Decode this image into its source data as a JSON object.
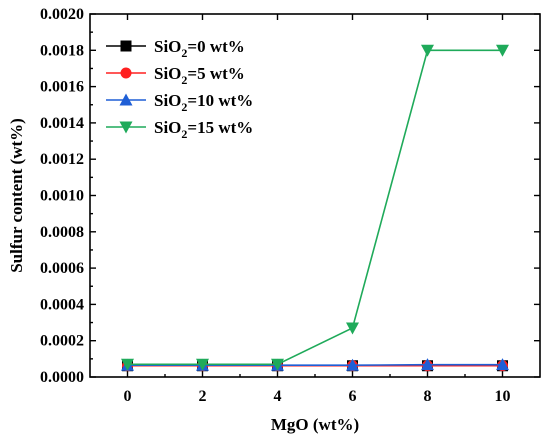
{
  "chart_data": {
    "type": "line",
    "xlabel": "MgO (wt%)",
    "ylabel": "Sulfur content (wt%)",
    "x": [
      0,
      2,
      4,
      6,
      8,
      10
    ],
    "xlim": [
      -1,
      11
    ],
    "ylim": [
      0,
      0.002
    ],
    "xticks": [
      "0",
      "2",
      "4",
      "6",
      "8",
      "10"
    ],
    "yticks": [
      "0.0000",
      "0.0002",
      "0.0004",
      "0.0006",
      "0.0008",
      "0.0010",
      "0.0012",
      "0.0014",
      "0.0016",
      "0.0018",
      "0.0020"
    ],
    "legend_position": "top-left",
    "grid": false,
    "series": [
      {
        "name_main": "SiO",
        "name_sub": "2",
        "name_rest": "=0 wt%",
        "marker": "square",
        "color": "#000000",
        "values": [
          6.2e-05,
          6.2e-05,
          6.2e-05,
          6.2e-05,
          6.2e-05,
          6.2e-05
        ]
      },
      {
        "name_main": "SiO",
        "name_sub": "2",
        "name_rest": "=5 wt%",
        "marker": "circle",
        "color": "#ff2020",
        "values": [
          6.2e-05,
          6.2e-05,
          6.2e-05,
          6.2e-05,
          6.2e-05,
          6.2e-05
        ]
      },
      {
        "name_main": "SiO",
        "name_sub": "2",
        "name_rest": "=10 wt%",
        "marker": "triangle-up",
        "color": "#1f5fd6",
        "values": [
          6.5e-05,
          6.5e-05,
          6.5e-05,
          6.5e-05,
          6.8e-05,
          6.8e-05
        ]
      },
      {
        "name_main": "SiO",
        "name_sub": "2",
        "name_rest": "=15 wt%",
        "marker": "triangle-down",
        "color": "#1faa5a",
        "values": [
          7e-05,
          7e-05,
          7e-05,
          0.00027,
          0.0018,
          0.0018
        ]
      }
    ]
  }
}
